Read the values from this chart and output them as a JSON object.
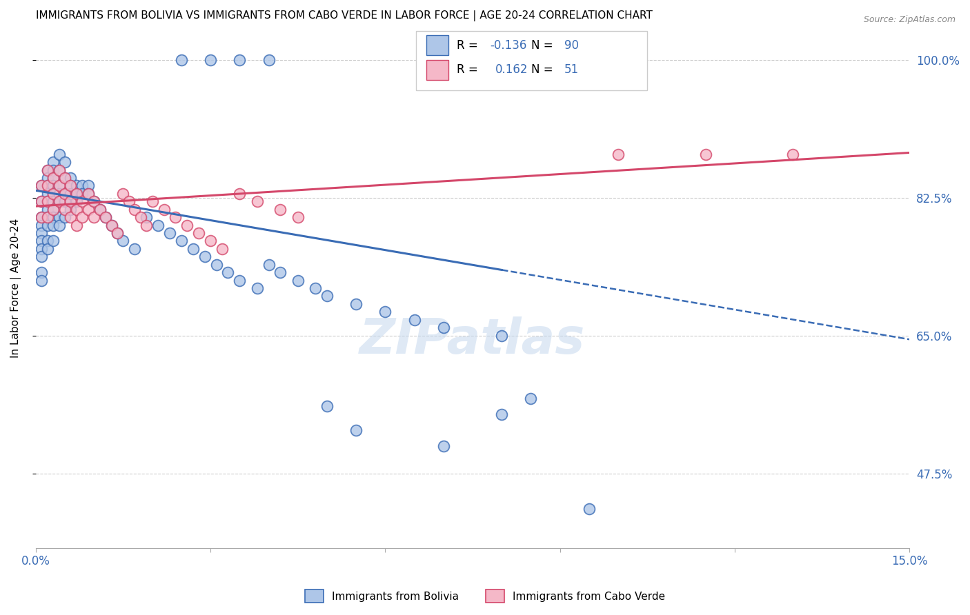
{
  "title": "IMMIGRANTS FROM BOLIVIA VS IMMIGRANTS FROM CABO VERDE IN LABOR FORCE | AGE 20-24 CORRELATION CHART",
  "source": "Source: ZipAtlas.com",
  "ylabel": "In Labor Force | Age 20-24",
  "xlim": [
    0.0,
    0.15
  ],
  "ylim": [
    0.38,
    1.04
  ],
  "ytick_positions": [
    0.475,
    0.65,
    0.825,
    1.0
  ],
  "ytick_labels": [
    "47.5%",
    "65.0%",
    "82.5%",
    "100.0%"
  ],
  "bolivia_R": -0.136,
  "bolivia_N": 90,
  "caboverde_R": 0.162,
  "caboverde_N": 51,
  "bolivia_color": "#aec6e8",
  "caboverde_color": "#f5b8c8",
  "bolivia_line_color": "#3a6cb5",
  "caboverde_line_color": "#d4476a",
  "bolivia_line_solid_end": 0.08,
  "bolivia_line_x0": 0.0,
  "bolivia_line_y0": 0.834,
  "bolivia_line_x1": 0.15,
  "bolivia_line_y1": 0.645,
  "caboverde_line_x0": 0.0,
  "caboverde_line_y0": 0.814,
  "caboverde_line_x1": 0.15,
  "caboverde_line_y1": 0.882,
  "bolivia_scatter_x": [
    0.001,
    0.001,
    0.001,
    0.001,
    0.001,
    0.001,
    0.001,
    0.001,
    0.001,
    0.001,
    0.002,
    0.002,
    0.002,
    0.002,
    0.002,
    0.002,
    0.002,
    0.002,
    0.002,
    0.002,
    0.003,
    0.003,
    0.003,
    0.003,
    0.003,
    0.003,
    0.003,
    0.003,
    0.003,
    0.003,
    0.004,
    0.004,
    0.004,
    0.004,
    0.004,
    0.004,
    0.004,
    0.005,
    0.005,
    0.005,
    0.005,
    0.005,
    0.006,
    0.006,
    0.006,
    0.006,
    0.007,
    0.007,
    0.007,
    0.008,
    0.008,
    0.009,
    0.009,
    0.01,
    0.011,
    0.012,
    0.013,
    0.014,
    0.015,
    0.017,
    0.019,
    0.021,
    0.023,
    0.025,
    0.027,
    0.029,
    0.031,
    0.033,
    0.035,
    0.038,
    0.04,
    0.042,
    0.045,
    0.048,
    0.05,
    0.055,
    0.06,
    0.065,
    0.07,
    0.08,
    0.025,
    0.03,
    0.035,
    0.04,
    0.05,
    0.055,
    0.07,
    0.08,
    0.085,
    0.095
  ],
  "bolivia_scatter_y": [
    0.84,
    0.82,
    0.8,
    0.79,
    0.78,
    0.77,
    0.76,
    0.75,
    0.73,
    0.72,
    0.86,
    0.85,
    0.84,
    0.83,
    0.82,
    0.81,
    0.8,
    0.79,
    0.77,
    0.76,
    0.87,
    0.86,
    0.85,
    0.84,
    0.83,
    0.82,
    0.81,
    0.8,
    0.79,
    0.77,
    0.88,
    0.86,
    0.84,
    0.83,
    0.82,
    0.8,
    0.79,
    0.87,
    0.85,
    0.83,
    0.82,
    0.8,
    0.85,
    0.84,
    0.83,
    0.81,
    0.84,
    0.83,
    0.82,
    0.84,
    0.83,
    0.84,
    0.83,
    0.82,
    0.81,
    0.8,
    0.79,
    0.78,
    0.77,
    0.76,
    0.8,
    0.79,
    0.78,
    0.77,
    0.76,
    0.75,
    0.74,
    0.73,
    0.72,
    0.71,
    0.74,
    0.73,
    0.72,
    0.71,
    0.7,
    0.69,
    0.68,
    0.67,
    0.66,
    0.65,
    1.0,
    1.0,
    1.0,
    1.0,
    0.56,
    0.53,
    0.51,
    0.55,
    0.57,
    0.43
  ],
  "caboverde_scatter_x": [
    0.001,
    0.001,
    0.001,
    0.002,
    0.002,
    0.002,
    0.002,
    0.003,
    0.003,
    0.003,
    0.004,
    0.004,
    0.004,
    0.005,
    0.005,
    0.005,
    0.006,
    0.006,
    0.006,
    0.007,
    0.007,
    0.007,
    0.008,
    0.008,
    0.009,
    0.009,
    0.01,
    0.01,
    0.011,
    0.012,
    0.013,
    0.014,
    0.015,
    0.016,
    0.017,
    0.018,
    0.019,
    0.02,
    0.022,
    0.024,
    0.026,
    0.028,
    0.03,
    0.032,
    0.035,
    0.038,
    0.042,
    0.045,
    0.1,
    0.115,
    0.13
  ],
  "caboverde_scatter_y": [
    0.84,
    0.82,
    0.8,
    0.86,
    0.84,
    0.82,
    0.8,
    0.85,
    0.83,
    0.81,
    0.86,
    0.84,
    0.82,
    0.85,
    0.83,
    0.81,
    0.84,
    0.82,
    0.8,
    0.83,
    0.81,
    0.79,
    0.82,
    0.8,
    0.83,
    0.81,
    0.82,
    0.8,
    0.81,
    0.8,
    0.79,
    0.78,
    0.83,
    0.82,
    0.81,
    0.8,
    0.79,
    0.82,
    0.81,
    0.8,
    0.79,
    0.78,
    0.77,
    0.76,
    0.83,
    0.82,
    0.81,
    0.8,
    0.88,
    0.88,
    0.88
  ]
}
